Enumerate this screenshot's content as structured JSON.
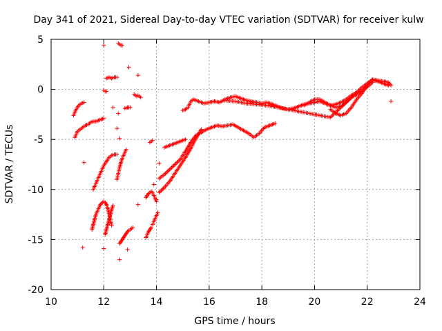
{
  "chart_data": {
    "type": "scatter",
    "title": "Day 341 of 2021, Sidereal Day-to-day VTEC variation (SDTVAR) for receiver kulw",
    "xlabel": "GPS time / hours",
    "ylabel": "SDTVAR / TECUs",
    "xlim": [
      10,
      24
    ],
    "ylim": [
      -20,
      5
    ],
    "xticks": [
      10,
      12,
      14,
      16,
      18,
      20,
      22,
      24
    ],
    "yticks": [
      5,
      0,
      -5,
      -10,
      -15,
      -20
    ],
    "grid": true,
    "marker": "+",
    "series": [
      {
        "name": "SDTVAR",
        "color": "#ff0000",
        "tracks": [
          {
            "x": [
              10.9,
              11.0,
              11.1,
              11.2,
              11.3,
              11.4,
              11.5,
              11.6,
              11.7,
              11.8,
              11.9,
              12.0
            ],
            "y": [
              -4.8,
              -4.2,
              -4.0,
              -3.8,
              -3.6,
              -3.5,
              -3.3,
              -3.2,
              -3.2,
              -3.1,
              -3.0,
              -2.9
            ]
          },
          {
            "x": [
              10.85,
              10.95,
              11.05,
              11.15,
              11.25
            ],
            "y": [
              -2.6,
              -2.0,
              -1.6,
              -1.4,
              -1.3
            ]
          },
          {
            "x": [
              11.6,
              11.7,
              11.8,
              11.9,
              12.0,
              12.1,
              12.2,
              12.3,
              12.4,
              12.5
            ],
            "y": [
              -10.0,
              -9.4,
              -8.8,
              -8.2,
              -7.6,
              -7.2,
              -6.8,
              -6.6,
              -6.5,
              -6.5
            ]
          },
          {
            "x": [
              11.55,
              11.6,
              11.65,
              11.7,
              11.75,
              11.8,
              11.85,
              11.9,
              11.95,
              12.0,
              12.05,
              12.1,
              12.15,
              12.2,
              12.25,
              12.3
            ],
            "y": [
              -14.0,
              -13.5,
              -13.0,
              -12.5,
              -12.2,
              -11.9,
              -11.6,
              -11.4,
              -11.3,
              -11.2,
              -11.3,
              -11.5,
              -11.9,
              -12.4,
              -13.0,
              -13.6
            ]
          },
          {
            "x": [
              12.05,
              12.1,
              12.15,
              12.2,
              12.25,
              12.3,
              12.35
            ],
            "y": [
              -14.5,
              -14.0,
              -13.5,
              -13.0,
              -12.5,
              -12.0,
              -11.6
            ]
          },
          {
            "x": [
              12.6,
              12.65,
              12.7,
              12.75,
              12.8,
              12.85,
              12.9,
              12.95,
              13.0,
              13.05,
              13.1
            ],
            "y": [
              -15.4,
              -15.2,
              -15.0,
              -14.8,
              -14.6,
              -14.4,
              -14.2,
              -14.1,
              -14.0,
              -13.9,
              -13.8
            ]
          },
          {
            "x": [
              12.5,
              12.55,
              12.6,
              12.65,
              12.7,
              12.75,
              12.8,
              12.85
            ],
            "y": [
              -9.0,
              -8.4,
              -7.8,
              -7.3,
              -6.9,
              -6.6,
              -6.3,
              -6.0
            ]
          },
          {
            "x": [
              13.6,
              13.65,
              13.7,
              13.75,
              13.8
            ],
            "y": [
              -14.8,
              -14.5,
              -14.2,
              -14.0,
              -13.8
            ]
          },
          {
            "x": [
              13.85,
              13.9,
              13.95,
              14.0,
              14.05
            ],
            "y": [
              -13.5,
              -13.2,
              -12.9,
              -12.6,
              -12.3
            ]
          },
          {
            "x": [
              13.6,
              13.65,
              13.7,
              13.75,
              13.8,
              13.85,
              13.9,
              13.95,
              14.0
            ],
            "y": [
              -10.8,
              -10.6,
              -10.4,
              -10.3,
              -10.2,
              -10.3,
              -10.6,
              -10.9,
              -11.2
            ]
          },
          {
            "x": [
              12.8,
              12.9,
              13.0
            ],
            "y": [
              -1.9,
              -1.8,
              -1.8
            ]
          },
          {
            "x": [
              13.15,
              13.2,
              13.25,
              13.3,
              13.35,
              13.4
            ],
            "y": [
              -0.5,
              -0.6,
              -0.7,
              -0.6,
              -0.7,
              -0.8
            ]
          },
          {
            "x": [
              12.55,
              12.6,
              12.65,
              12.7
            ],
            "y": [
              4.6,
              4.5,
              4.4,
              4.4
            ]
          },
          {
            "x": [
              12.1,
              12.2,
              12.3,
              12.4,
              12.5
            ],
            "y": [
              1.1,
              1.2,
              1.1,
              1.2,
              1.2
            ]
          },
          {
            "x": [
              12.0,
              12.05,
              12.1
            ],
            "y": [
              -0.1,
              -0.2,
              -0.2
            ]
          },
          {
            "x": [
              13.75,
              13.8,
              13.85
            ],
            "y": [
              -5.3,
              -5.2,
              -5.1
            ]
          },
          {
            "x": [
              14.1,
              14.3,
              14.5,
              14.7,
              14.9,
              15.1,
              15.3,
              15.5,
              15.7,
              15.9,
              16.1,
              16.3,
              16.5,
              16.7,
              16.9,
              17.1,
              17.3,
              17.5,
              17.7,
              17.9,
              18.1,
              18.3,
              18.5
            ],
            "y": [
              -8.9,
              -8.5,
              -8.0,
              -7.5,
              -7.0,
              -6.2,
              -5.3,
              -4.6,
              -4.3,
              -4.0,
              -3.8,
              -3.6,
              -3.7,
              -3.6,
              -3.5,
              -3.8,
              -4.1,
              -4.4,
              -4.8,
              -4.4,
              -3.8,
              -3.6,
              -3.4
            ]
          },
          {
            "x": [
              14.1,
              14.3,
              14.5,
              14.7,
              14.9,
              15.1,
              15.3,
              15.5,
              15.7
            ],
            "y": [
              -10.3,
              -9.8,
              -9.2,
              -8.4,
              -7.6,
              -6.8,
              -5.9,
              -4.9,
              -4.0
            ]
          },
          {
            "x": [
              14.3,
              14.5,
              14.7,
              14.9,
              15.1
            ],
            "y": [
              -5.8,
              -5.6,
              -5.4,
              -5.2,
              -5.0
            ]
          },
          {
            "x": [
              15.0,
              15.1,
              15.2,
              15.3,
              15.4,
              15.6,
              15.8,
              16.0,
              16.2,
              16.4,
              16.6,
              16.8,
              17.0,
              17.2,
              17.4,
              17.6,
              17.8,
              18.0,
              18.2,
              18.4,
              18.6,
              18.8,
              19.0,
              19.2,
              19.4,
              19.6,
              19.8,
              20.0,
              20.2,
              20.4,
              20.6,
              20.8,
              21.0,
              21.2,
              21.4,
              21.6,
              21.8,
              22.0,
              22.2,
              22.4,
              22.6,
              22.8
            ],
            "y": [
              -2.1,
              -2.0,
              -1.8,
              -1.2,
              -1.0,
              -1.2,
              -1.4,
              -1.3,
              -1.2,
              -1.3,
              -1.0,
              -0.8,
              -0.7,
              -0.9,
              -1.1,
              -1.2,
              -1.3,
              -1.4,
              -1.3,
              -1.5,
              -1.7,
              -1.9,
              -2.0,
              -1.9,
              -1.7,
              -1.5,
              -1.4,
              -1.3,
              -1.2,
              -1.4,
              -1.6,
              -1.5,
              -1.3,
              -1.0,
              -0.6,
              -0.3,
              0.2,
              0.6,
              0.9,
              0.8,
              0.6,
              0.4
            ]
          },
          {
            "x": [
              16.6,
              17.0,
              17.4,
              17.8,
              18.2,
              18.6,
              19.0,
              19.4,
              19.8,
              20.2,
              20.6,
              21.0,
              21.4,
              21.8,
              22.2
            ],
            "y": [
              -1.1,
              -1.2,
              -1.4,
              -1.5,
              -1.6,
              -1.8,
              -2.0,
              -2.2,
              -2.4,
              -2.6,
              -2.8,
              -1.8,
              -0.8,
              -0.2,
              0.7
            ]
          },
          {
            "x": [
              19.6,
              19.8,
              20.0,
              20.2,
              20.4,
              20.6,
              20.8,
              21.0,
              21.2,
              21.4,
              21.6
            ],
            "y": [
              -1.6,
              -1.3,
              -1.0,
              -1.0,
              -1.3,
              -1.6,
              -1.8,
              -1.7,
              -1.3,
              -0.8,
              -0.3
            ]
          },
          {
            "x": [
              20.6,
              20.8,
              21.0,
              21.2,
              21.4,
              21.6,
              21.8,
              22.0,
              22.2,
              22.4,
              22.6,
              22.8,
              22.9
            ],
            "y": [
              -2.0,
              -2.4,
              -2.6,
              -2.4,
              -1.8,
              -1.0,
              -0.4,
              0.5,
              1.0,
              0.9,
              0.8,
              0.7,
              0.4
            ]
          }
        ],
        "outliers": {
          "x": [
            11.2,
            11.25,
            12.0,
            12.0,
            12.6,
            12.6,
            12.9,
            13.3,
            13.3,
            12.95,
            12.55,
            12.5,
            13.9,
            14.0,
            14.1,
            12.35,
            22.9
          ],
          "y": [
            -15.8,
            -7.3,
            4.4,
            -15.9,
            -17.0,
            -4.9,
            -16.0,
            1.4,
            -11.5,
            2.2,
            -2.4,
            -3.9,
            -9.5,
            -11.0,
            -7.4,
            -1.8,
            -1.2
          ]
        }
      }
    ]
  }
}
